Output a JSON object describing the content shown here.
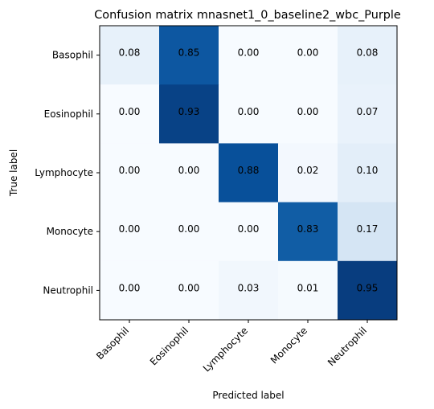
{
  "chart_data": {
    "type": "heatmap",
    "title": "Confusion matrix mnasnet1_0_baseline2_wbc_Purple",
    "xlabel": "Predicted label",
    "ylabel": "True label",
    "x_categories": [
      "Basophil",
      "Eosinophil",
      "Lymphocyte",
      "Monocyte",
      "Neutrophil"
    ],
    "y_categories": [
      "Basophil",
      "Eosinophil",
      "Lymphocyte",
      "Monocyte",
      "Neutrophil"
    ],
    "values": [
      [
        0.08,
        0.85,
        0.0,
        0.0,
        0.08
      ],
      [
        0.0,
        0.93,
        0.0,
        0.0,
        0.07
      ],
      [
        0.0,
        0.0,
        0.88,
        0.02,
        0.1
      ],
      [
        0.0,
        0.0,
        0.0,
        0.83,
        0.17
      ],
      [
        0.0,
        0.0,
        0.03,
        0.01,
        0.95
      ]
    ],
    "colormap": "Blues",
    "value_range": [
      0,
      1
    ],
    "grid": false,
    "colors": {
      "low": "#f7fbff",
      "high": "#08306b",
      "text_dark": "#000000",
      "text_light": "#ffffff"
    }
  }
}
